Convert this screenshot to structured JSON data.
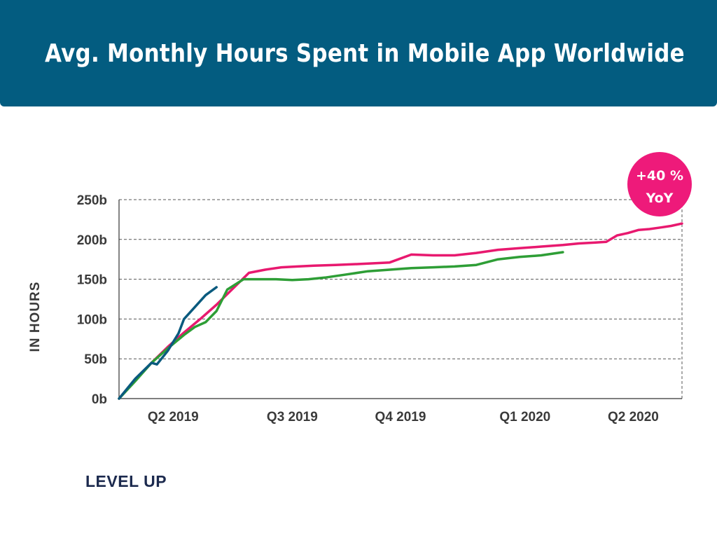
{
  "header": {
    "title": "Avg. Monthly Hours Spent in Mobile App Worldwide"
  },
  "badge": {
    "line1": "+40 %",
    "line2": "YoY"
  },
  "footer": {
    "brand": "LEVEL UP"
  },
  "colors": {
    "banner": "#035c80",
    "grid": "#555555",
    "text": "#3a3a3a",
    "brand": "#1c2a4e",
    "badge": "#ee1a7a",
    "series_pink": "#e8196f",
    "series_green": "#2e9e36",
    "series_blue": "#0a5a7e"
  },
  "chart_data": {
    "type": "line",
    "title": "",
    "xlabel": "",
    "ylabel": "IN HOURS",
    "ylim": [
      0,
      250
    ],
    "xlim": [
      0,
      104
    ],
    "y_ticks": [
      {
        "value": 0,
        "label": "0b"
      },
      {
        "value": 50,
        "label": "50b"
      },
      {
        "value": 100,
        "label": "100b"
      },
      {
        "value": 150,
        "label": "150b"
      },
      {
        "value": 200,
        "label": "200b"
      },
      {
        "value": 250,
        "label": "250b"
      }
    ],
    "x_ticks": [
      {
        "value": 10,
        "label": "Q2 2019"
      },
      {
        "value": 32,
        "label": "Q3 2019"
      },
      {
        "value": 52,
        "label": "Q4 2019"
      },
      {
        "value": 75,
        "label": "Q1 2020"
      },
      {
        "value": 95,
        "label": "Q2 2020"
      }
    ],
    "grid": true,
    "legend": "none",
    "series": [
      {
        "color": "#e8196f",
        "x": [
          0,
          3,
          6,
          9,
          12,
          15,
          18,
          21,
          24,
          27,
          30,
          33,
          36,
          40,
          44,
          47,
          50,
          54,
          58,
          62,
          66,
          70,
          74,
          78,
          82,
          85,
          88,
          90,
          92,
          94,
          96,
          98,
          100,
          102,
          104
        ],
        "y": [
          0,
          23,
          45,
          65,
          83,
          100,
          118,
          138,
          158,
          162,
          165,
          166,
          167,
          168,
          169,
          170,
          171,
          181,
          180,
          180,
          183,
          187,
          189,
          191,
          193,
          195,
          196,
          197,
          205,
          208,
          212,
          213,
          215,
          217,
          220
        ]
      },
      {
        "color": "#2e9e36",
        "x": [
          0,
          3,
          6,
          9,
          12,
          14,
          16,
          18,
          20,
          23,
          26,
          29,
          32,
          35,
          38,
          42,
          46,
          50,
          54,
          58,
          62,
          66,
          70,
          74,
          78,
          82
        ],
        "y": [
          0,
          22,
          45,
          63,
          80,
          90,
          96,
          110,
          137,
          150,
          150,
          150,
          149,
          150,
          152,
          156,
          160,
          162,
          164,
          165,
          166,
          168,
          175,
          178,
          180,
          184
        ]
      },
      {
        "color": "#0a5a7e",
        "x": [
          0,
          3,
          6,
          7,
          9,
          11,
          12,
          14,
          16,
          18
        ],
        "y": [
          0,
          25,
          45,
          43,
          60,
          82,
          100,
          115,
          130,
          140
        ]
      }
    ]
  }
}
